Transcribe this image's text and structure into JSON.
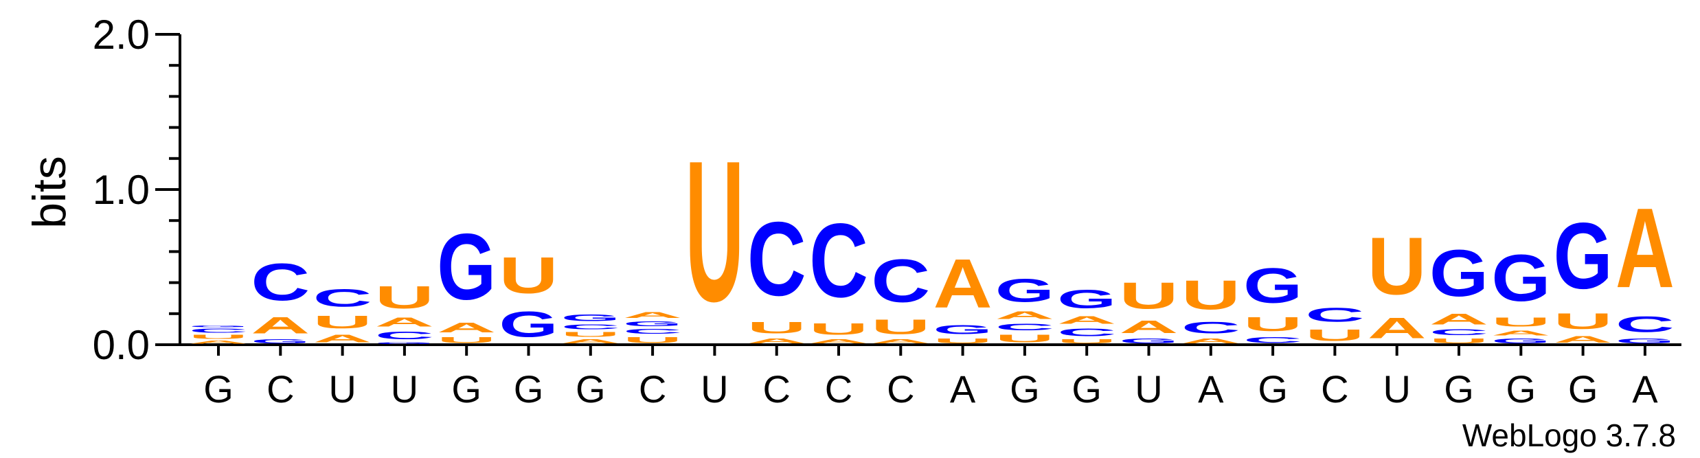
{
  "chart_data": {
    "type": "sequence_logo",
    "ylabel": "bits",
    "ylim": [
      0,
      2
    ],
    "yticks": [
      "0.0",
      "1.0",
      "2.0"
    ],
    "colors": {
      "A": "#ff8c00",
      "U": "#ff8c00",
      "C": "#0000ff",
      "G": "#0000ff"
    },
    "positions": [
      {
        "label": "G",
        "stack": [
          [
            "A",
            0.03
          ],
          [
            "U",
            0.04
          ],
          [
            "C",
            0.04
          ],
          [
            "G",
            0.02
          ]
        ]
      },
      {
        "label": "C",
        "stack": [
          [
            "G",
            0.04
          ],
          [
            "A",
            0.17
          ],
          [
            "C",
            0.38
          ]
        ]
      },
      {
        "label": "U",
        "stack": [
          [
            "A",
            0.08
          ],
          [
            "U",
            0.13
          ],
          [
            "C",
            0.18
          ]
        ]
      },
      {
        "label": "U",
        "stack": [
          [
            "G",
            0.02
          ],
          [
            "C",
            0.08
          ],
          [
            "A",
            0.09
          ],
          [
            "U",
            0.23
          ]
        ]
      },
      {
        "label": "G",
        "stack": [
          [
            "U",
            0.06
          ],
          [
            "A",
            0.1
          ],
          [
            "G",
            0.68
          ]
        ]
      },
      {
        "label": "G",
        "stack": [
          [
            "G",
            0.26
          ],
          [
            "U",
            0.37
          ]
        ]
      },
      {
        "label": "G",
        "stack": [
          [
            "A",
            0.04
          ],
          [
            "U",
            0.05
          ],
          [
            "C",
            0.05
          ],
          [
            "G",
            0.07
          ]
        ]
      },
      {
        "label": "C",
        "stack": [
          [
            "U",
            0.06
          ],
          [
            "C",
            0.05
          ],
          [
            "G",
            0.05
          ],
          [
            "A",
            0.06
          ]
        ]
      },
      {
        "label": "U",
        "stack": [
          [
            "U",
            1.45
          ]
        ]
      },
      {
        "label": "C",
        "stack": [
          [
            "A",
            0.05
          ],
          [
            "U",
            0.12
          ],
          [
            "C",
            0.76
          ]
        ]
      },
      {
        "label": "C",
        "stack": [
          [
            "A",
            0.04
          ],
          [
            "U",
            0.12
          ],
          [
            "C",
            0.76
          ]
        ]
      },
      {
        "label": "C",
        "stack": [
          [
            "A",
            0.04
          ],
          [
            "U",
            0.15
          ],
          [
            "C",
            0.44
          ]
        ]
      },
      {
        "label": "A",
        "stack": [
          [
            "U",
            0.05
          ],
          [
            "G",
            0.09
          ],
          [
            "A",
            0.5
          ]
        ]
      },
      {
        "label": "G",
        "stack": [
          [
            "U",
            0.08
          ],
          [
            "C",
            0.07
          ],
          [
            "A",
            0.08
          ],
          [
            "G",
            0.24
          ]
        ]
      },
      {
        "label": "G",
        "stack": [
          [
            "U",
            0.04
          ],
          [
            "C",
            0.08
          ],
          [
            "A",
            0.08
          ],
          [
            "G",
            0.19
          ]
        ]
      },
      {
        "label": "U",
        "stack": [
          [
            "G",
            0.05
          ],
          [
            "A",
            0.13
          ],
          [
            "U",
            0.27
          ]
        ]
      },
      {
        "label": "A",
        "stack": [
          [
            "A",
            0.05
          ],
          [
            "C",
            0.12
          ],
          [
            "U",
            0.3
          ]
        ]
      },
      {
        "label": "G",
        "stack": [
          [
            "C",
            0.06
          ],
          [
            "U",
            0.14
          ],
          [
            "G",
            0.36
          ]
        ]
      },
      {
        "label": "C",
        "stack": [
          [
            "U",
            0.12
          ],
          [
            "C",
            0.14
          ]
        ]
      },
      {
        "label": "U",
        "stack": [
          [
            "A",
            0.21
          ],
          [
            "U",
            0.59
          ]
        ]
      },
      {
        "label": "G",
        "stack": [
          [
            "U",
            0.05
          ],
          [
            "C",
            0.06
          ],
          [
            "A",
            0.11
          ],
          [
            "G",
            0.48
          ]
        ]
      },
      {
        "label": "G",
        "stack": [
          [
            "G",
            0.05
          ],
          [
            "A",
            0.05
          ],
          [
            "U",
            0.09
          ],
          [
            "G",
            0.48
          ]
        ]
      },
      {
        "label": "G",
        "stack": [
          [
            "A",
            0.07
          ],
          [
            "U",
            0.16
          ],
          [
            "G",
            0.68
          ]
        ]
      },
      {
        "label": "A",
        "stack": [
          [
            "G",
            0.05
          ],
          [
            "C",
            0.16
          ],
          [
            "A",
            0.82
          ]
        ]
      }
    ]
  },
  "credit": "WebLogo 3.7.8"
}
